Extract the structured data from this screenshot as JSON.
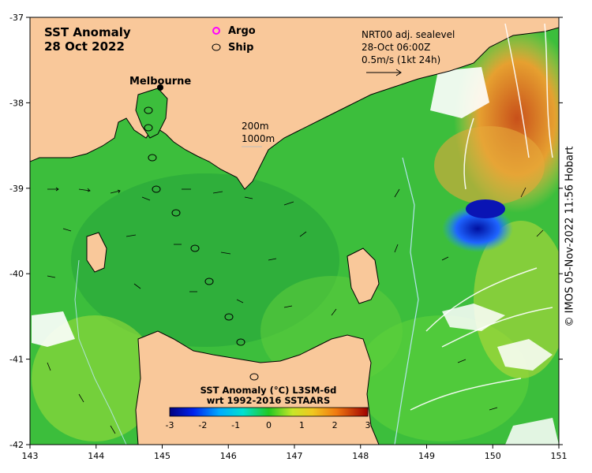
{
  "title": {
    "line1": "SST Anomaly",
    "line2": "28 Oct 2022"
  },
  "legend": {
    "argo_label": "Argo",
    "ship_label": "Ship"
  },
  "city": {
    "name": "Melbourne"
  },
  "contours": {
    "label_200": "200m",
    "label_1000": "1000m"
  },
  "current_info": {
    "line1": "NRT00 adj. sealevel",
    "line2": "28-Oct 06:00Z",
    "line3": "0.5m/s (1kt 24h)"
  },
  "colorbar": {
    "title_line1": "SST Anomaly (°C) L3SM-6d",
    "title_line2": "wrt 1992-2016 SSTAARS",
    "ticks": [
      "-3",
      "-2",
      "-1",
      "0",
      "1",
      "2",
      "3"
    ]
  },
  "axes": {
    "x_ticks": [
      "143",
      "144",
      "145",
      "146",
      "147",
      "148",
      "149",
      "150",
      "151"
    ],
    "y_ticks": [
      "-37",
      "-38",
      "-39",
      "-40",
      "-41",
      "-42"
    ]
  },
  "credit": "© IMOS 05-Nov-2022 11:56 Hobart",
  "colors": {
    "land": "#f9c89a",
    "sea_base": "#3cc13c",
    "cold": "#0a14b4",
    "warm": "#d26414",
    "argo": "#ff00ff"
  }
}
